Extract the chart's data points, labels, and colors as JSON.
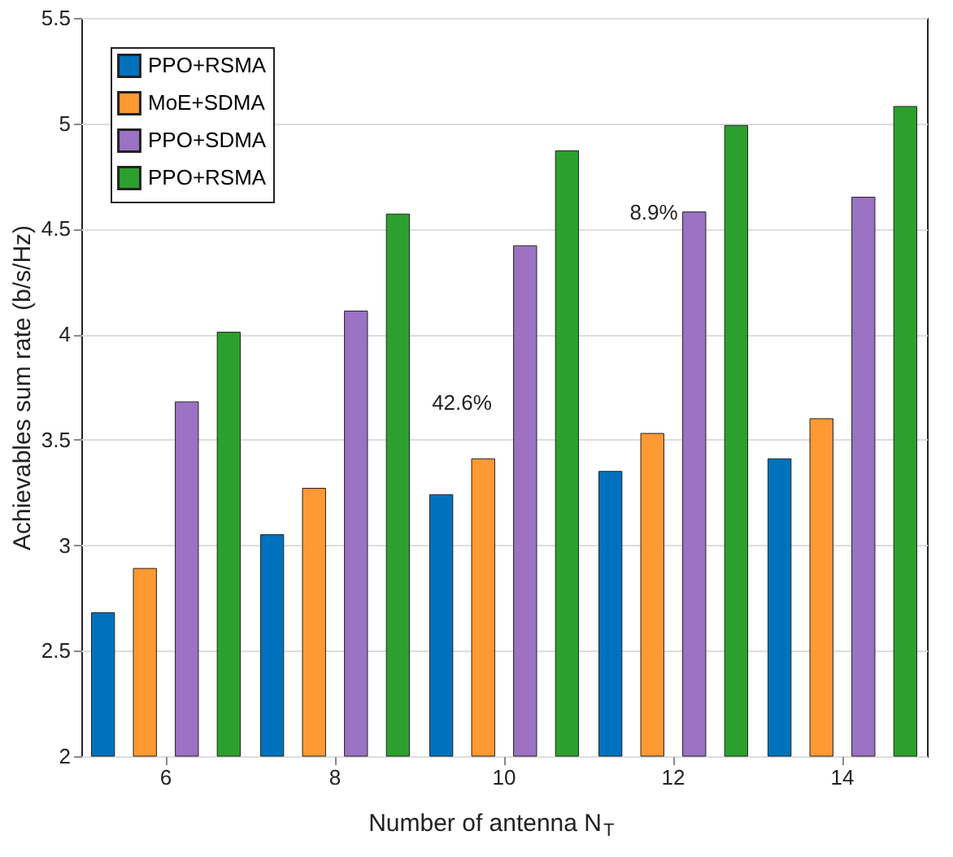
{
  "chart_data": {
    "type": "bar",
    "xlabel": "Number of antenna N$_{T}$",
    "ylabel": "Achievables sum rate (b/s/Hz)",
    "categories": [
      "6",
      "8",
      "10",
      "12",
      "14"
    ],
    "series": [
      {
        "name": "PPO+RSMA",
        "color": "#0072bd",
        "values": [
          2.68,
          3.05,
          3.24,
          3.35,
          3.41
        ]
      },
      {
        "name": "MoE+SDMA",
        "color": "#ff9933",
        "values": [
          2.89,
          3.27,
          3.41,
          3.53,
          3.6
        ]
      },
      {
        "name": "PPO+SDMA",
        "color": "#9b72c4",
        "values": [
          3.68,
          4.11,
          4.42,
          4.58,
          4.65
        ]
      },
      {
        "name": "PPO+RSMA",
        "color": "#2ca02c",
        "values": [
          4.01,
          4.57,
          4.87,
          4.99,
          5.08
        ]
      }
    ],
    "ylim": [
      2,
      5.5
    ],
    "yticks": [
      2,
      2.5,
      3,
      3.5,
      4,
      4.5,
      5,
      5.5
    ],
    "grid": "y",
    "legend": "top left",
    "annotations": [
      "42.6%",
      "8.9%"
    ]
  }
}
